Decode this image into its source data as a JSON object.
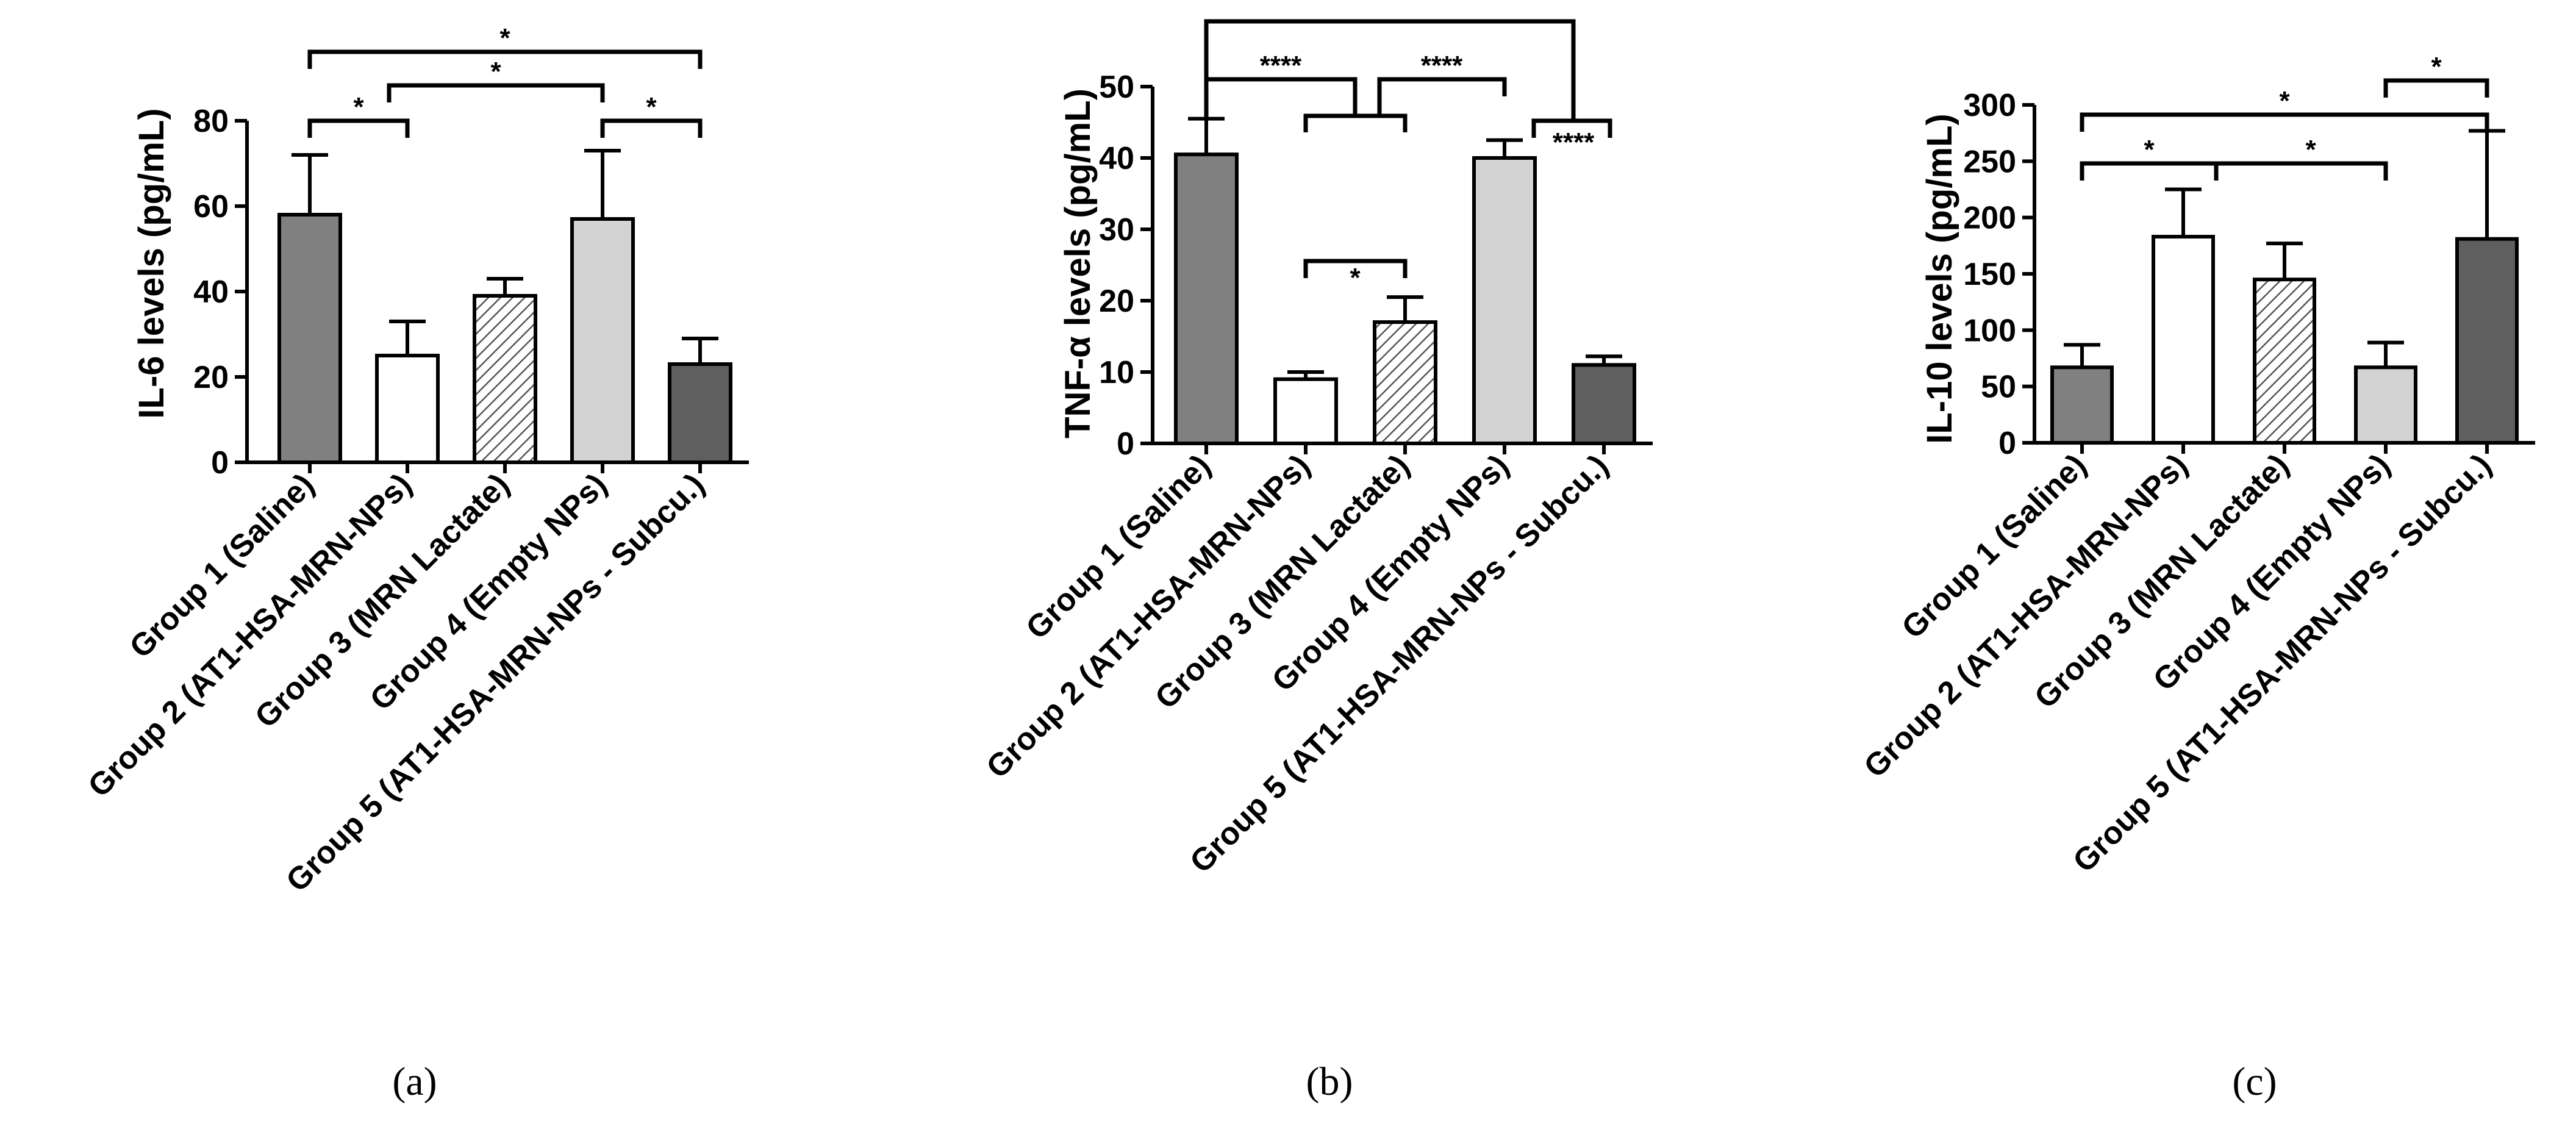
{
  "figure_labels": [
    "(a)",
    "(b)",
    "(c)"
  ],
  "categories": [
    "Group 1 (Saline)",
    "Group 2 (AT1-HSA-MRN-NPs)",
    "Group 3 (MRN Lactate)",
    "Group 4 (Empty NPs)",
    "Group 5 (AT1-HSA-MRN-NPs - Subcu.)"
  ],
  "colors": {
    "group1": "#808080",
    "group2": "#ffffff",
    "group3_hatch": "#555555",
    "group4": "#d3d3d3",
    "group5": "#5f5f5f",
    "axis": "#000000"
  },
  "chart_data": [
    {
      "type": "bar",
      "panel": "(a)",
      "ylabel": "IL-6 levels (pg/mL)",
      "ylim": [
        0,
        80
      ],
      "yticks": [
        0,
        20,
        40,
        60,
        80
      ],
      "categories": [
        "Group 1 (Saline)",
        "Group 2 (AT1-HSA-MRN-NPs)",
        "Group 3 (MRN Lactate)",
        "Group 4 (Empty NPs)",
        "Group 5 (AT1-HSA-MRN-NPs - Subcu.)"
      ],
      "values": [
        58,
        25,
        39,
        57,
        23
      ],
      "errors": [
        14,
        8,
        4,
        16,
        6
      ],
      "significance": [
        {
          "groups": [
            1,
            2
          ],
          "label": "*"
        },
        {
          "groups": [
            4,
            5
          ],
          "label": "*"
        },
        {
          "groups": [
            2,
            4
          ],
          "label": "*"
        },
        {
          "groups": [
            1,
            5
          ],
          "label": "*"
        }
      ]
    },
    {
      "type": "bar",
      "panel": "(b)",
      "ylabel": "TNF-α levels (pg/mL)",
      "ylim": [
        0,
        50
      ],
      "yticks": [
        0,
        10,
        20,
        30,
        40,
        50
      ],
      "categories": [
        "Group 1 (Saline)",
        "Group 2 (AT1-HSA-MRN-NPs)",
        "Group 3 (MRN Lactate)",
        "Group 4 (Empty NPs)",
        "Group 5 (AT1-HSA-MRN-NPs - Subcu.)"
      ],
      "values": [
        40.5,
        9,
        17,
        40,
        11
      ],
      "errors": [
        5,
        1,
        3.5,
        2.5,
        1.2
      ],
      "significance": [
        {
          "groups": [
            2,
            3
          ],
          "label": "*"
        },
        {
          "groups": [
            1,
            "2+3"
          ],
          "label": "****"
        },
        {
          "groups": [
            "2+3",
            4
          ],
          "label": "****"
        },
        {
          "groups": [
            4,
            5
          ],
          "label": "****"
        },
        {
          "groups": [
            1,
            5
          ],
          "label": ""
        }
      ]
    },
    {
      "type": "bar",
      "panel": "(c)",
      "ylabel": "IL-10 levels (pg/mL)",
      "ylim": [
        0,
        300
      ],
      "yticks": [
        0,
        50,
        100,
        150,
        200,
        250,
        300
      ],
      "categories": [
        "Group 1 (Saline)",
        "Group 2 (AT1-HSA-MRN-NPs)",
        "Group 3 (MRN Lactate)",
        "Group 4 (Empty NPs)",
        "Group 5 (AT1-HSA-MRN-NPs - Subcu.)"
      ],
      "values": [
        67,
        183,
        145,
        67,
        181
      ],
      "errors": [
        20,
        42,
        32,
        22,
        96
      ],
      "significance": [
        {
          "groups": [
            1,
            2
          ],
          "label": "*"
        },
        {
          "groups": [
            2,
            4
          ],
          "label": "*"
        },
        {
          "groups": [
            1,
            5
          ],
          "label": "*"
        },
        {
          "groups": [
            4,
            5
          ],
          "label": "*"
        }
      ]
    }
  ]
}
